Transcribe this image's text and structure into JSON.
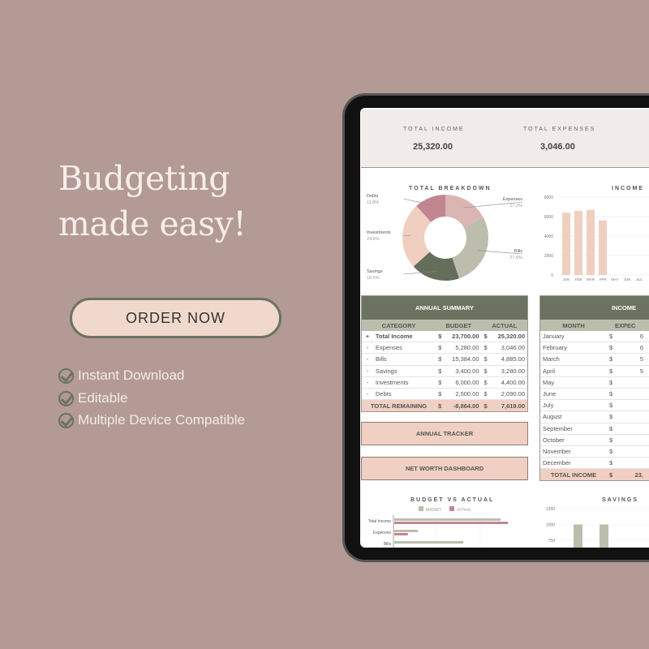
{
  "promo": {
    "headline_1": "Budgeting",
    "headline_2": "made easy!",
    "order_button": "ORDER NOW",
    "features": [
      "Instant Download",
      "Editable",
      "Multiple Device Compatible"
    ]
  },
  "summary": {
    "total_income_label": "TOTAL INCOME",
    "total_income": "25,320.00",
    "total_expenses_label": "TOTAL EXPENSES",
    "total_expenses": "3,046.00"
  },
  "breakdown": {
    "title": "TOTAL BREAKDOWN",
    "slices": [
      {
        "name": "Expenses",
        "pct": "17.2%",
        "value": 17.2,
        "color": "#dbb5b2"
      },
      {
        "name": "Bills",
        "pct": "27.6%",
        "value": 27.6,
        "color": "#bcbdac"
      },
      {
        "name": "Savings",
        "pct": "18.5%",
        "value": 18.5,
        "color": "#656e5b"
      },
      {
        "name": "Investments",
        "pct": "24.9%",
        "value": 24.9,
        "color": "#f0cfc0"
      },
      {
        "name": "Debts",
        "pct": "11.8%",
        "value": 11.8,
        "color": "#c28690"
      }
    ]
  },
  "income_chart": {
    "title": "INCOME",
    "type": "bar",
    "yticks": [
      "8000",
      "6000",
      "4000",
      "2000",
      "0"
    ],
    "ylim": [
      0,
      8000
    ],
    "categories": [
      "JAN",
      "FEB",
      "MAR",
      "APR",
      "MAY",
      "JUN",
      "JUL"
    ],
    "values": [
      6400,
      6600,
      6700,
      5600,
      0,
      0,
      0
    ],
    "color": "#f0cfc0"
  },
  "annual_summary": {
    "title": "ANNUAL SUMMARY",
    "headers": [
      "CATEGORY",
      "BUDGET",
      "ACTUAL"
    ],
    "rows": [
      {
        "sign": "+",
        "category": "Total Income",
        "budget": "23,700.00",
        "actual": "25,320.00",
        "bold": true
      },
      {
        "sign": "-",
        "category": "Expenses",
        "budget": "5,280.00",
        "actual": "3,046.00"
      },
      {
        "sign": "-",
        "category": "Bills",
        "budget": "15,384.00",
        "actual": "4,885.00"
      },
      {
        "sign": "-",
        "category": "Savings",
        "budget": "3,400.00",
        "actual": "3,280.00"
      },
      {
        "sign": "-",
        "category": "Investments",
        "budget": "6,000.00",
        "actual": "4,400.00"
      },
      {
        "sign": "-",
        "category": "Debts",
        "budget": "2,500.00",
        "actual": "2,090.00"
      }
    ],
    "currency": "$",
    "total_label": "TOTAL REMAINING",
    "total_budget": "-8,864.00",
    "total_actual": "7,619.00"
  },
  "buttons": {
    "annual_tracker": "ANNUAL TRACKER",
    "net_worth": "NET WORTH DASHBOARD"
  },
  "income_table": {
    "title": "INCOME",
    "headers": [
      "MONTH",
      "EXPEC"
    ],
    "currency": "$",
    "rows": [
      {
        "month": "January",
        "v": "6"
      },
      {
        "month": "February",
        "v": "6"
      },
      {
        "month": "March",
        "v": "5"
      },
      {
        "month": "April",
        "v": "5"
      },
      {
        "month": "May",
        "v": ""
      },
      {
        "month": "June",
        "v": ""
      },
      {
        "month": "July",
        "v": ""
      },
      {
        "month": "August",
        "v": ""
      },
      {
        "month": "September",
        "v": ""
      },
      {
        "month": "October",
        "v": ""
      },
      {
        "month": "November",
        "v": ""
      },
      {
        "month": "December",
        "v": ""
      }
    ],
    "total_label": "TOTAL INCOME",
    "total": "23,"
  },
  "bva": {
    "title": "BUDGET VS ACTUAL",
    "legend": [
      {
        "name": "BUDGET",
        "color": "#bcbdac"
      },
      {
        "name": "ACTUAL",
        "color": "#c28690"
      }
    ],
    "categories": [
      "Total Income",
      "Expenses",
      "Bills"
    ],
    "budget": [
      23700,
      5280,
      15384
    ],
    "actual": [
      25320,
      3046,
      null
    ]
  },
  "savings_chart": {
    "title": "SAVINGS",
    "yticks": [
      "1250",
      "1000",
      "750"
    ],
    "values": [
      1000,
      1000
    ],
    "color": "#bcbdac"
  }
}
